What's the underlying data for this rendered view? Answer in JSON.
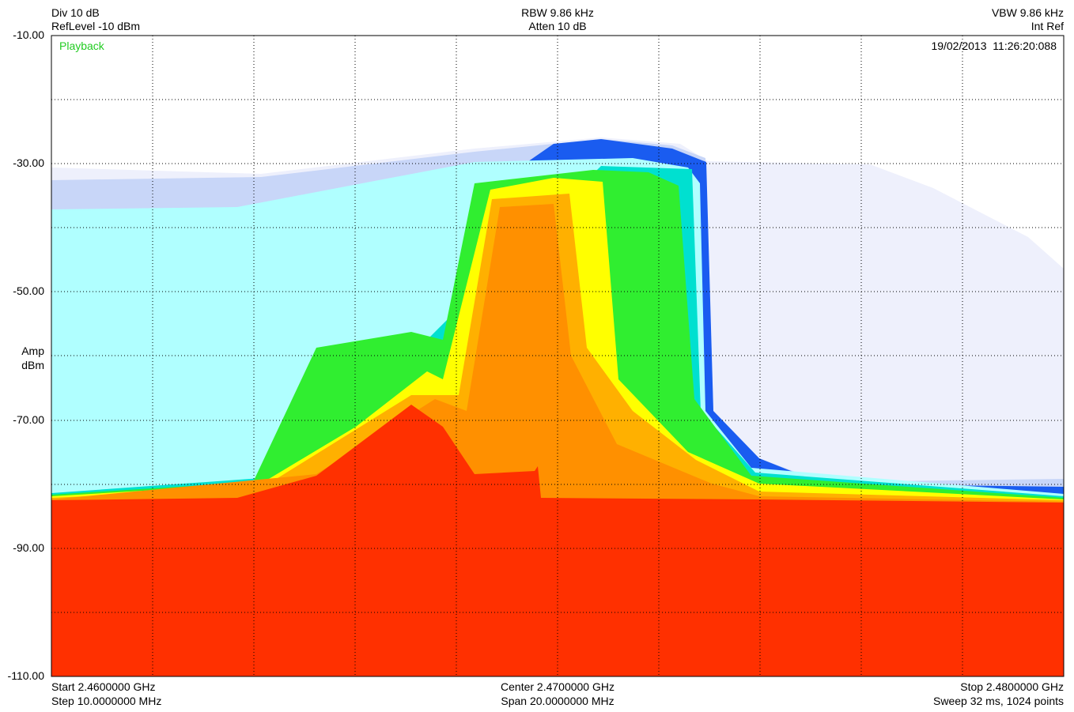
{
  "header": {
    "left": [
      "Div 10 dB",
      "RefLevel -10 dBm"
    ],
    "center": [
      "RBW 9.86 kHz",
      "Atten 10 dB"
    ],
    "right": [
      "VBW 9.86 kHz",
      "Int Ref"
    ]
  },
  "plot": {
    "mode": "Playback",
    "timestamp": "19/02/2013  11:26:20:088",
    "y_labels": [
      "-10.00",
      "-30.00",
      "-50.00",
      "-70.00",
      "-90.00",
      "-110.00"
    ],
    "y_unit": [
      "Amp",
      "dBm"
    ]
  },
  "footer": {
    "left": [
      "Start 2.4600000 GHz",
      "Step 10.0000000 MHz"
    ],
    "center": [
      "Center 2.4700000 GHz",
      "Span 20.0000000 MHz"
    ],
    "right": [
      "Stop 2.4800000 GHz",
      "Sweep 32 ms, 1024 points"
    ]
  }
}
